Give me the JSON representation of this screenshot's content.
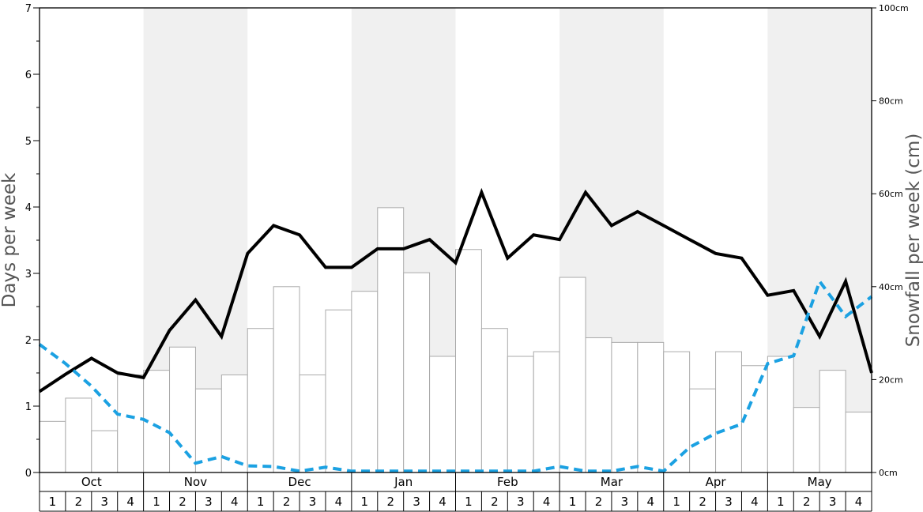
{
  "chart_data": {
    "type": "bar",
    "months": [
      "Oct",
      "Nov",
      "Dec",
      "Jan",
      "Feb",
      "Mar",
      "Apr",
      "May"
    ],
    "week_labels": [
      "1",
      "2",
      "3",
      "4"
    ],
    "ylabel_left": "Days per week",
    "ylabel_right": "Snowfall per week (cm)",
    "left_ylim": [
      0,
      7
    ],
    "left_ticks": [
      "0",
      "1",
      "2",
      "3",
      "4",
      "5",
      "6",
      "7"
    ],
    "right_ylim": [
      0,
      100
    ],
    "right_ticks": [
      "0cm",
      "20cm",
      "40cm",
      "60cm",
      "80cm",
      "100cm"
    ],
    "grid": false,
    "shaded_months": [
      "Nov",
      "Jan",
      "Mar",
      "May"
    ],
    "colors": {
      "bar_fill": "#ffffff",
      "bar_stroke": "#aaaaaa",
      "line_solid": "#000000",
      "line_dashed": "#1ba1e2",
      "shade": "#f0f0f0"
    },
    "series": [
      {
        "type": "bar",
        "axis": "right",
        "values": [
          11,
          16,
          9,
          21,
          22,
          27,
          18,
          21,
          31,
          40,
          21,
          35,
          39,
          57,
          43,
          25,
          48,
          31,
          25,
          26,
          42,
          29,
          28,
          28,
          26,
          18,
          26,
          23,
          25,
          14,
          22,
          13
        ]
      },
      {
        "type": "line",
        "axis": "left",
        "style": "solid",
        "values": [
          1.22,
          1.48,
          1.72,
          1.5,
          1.43,
          2.14,
          2.6,
          2.05,
          3.3,
          3.72,
          3.58,
          3.09,
          3.09,
          3.37,
          3.37,
          3.51,
          3.16,
          4.22,
          3.23,
          3.58,
          3.51,
          4.22,
          3.72,
          3.93,
          3.72,
          3.51,
          3.3,
          3.23,
          2.67,
          2.74,
          2.05,
          2.88,
          1.5
        ]
      },
      {
        "type": "line",
        "axis": "left",
        "style": "dashed",
        "values": [
          1.93,
          1.64,
          1.3,
          0.88,
          0.8,
          0.6,
          0.14,
          0.24,
          0.1,
          0.09,
          0.02,
          0.08,
          0.02,
          0.02,
          0.02,
          0.02,
          0.02,
          0.02,
          0.02,
          0.02,
          0.09,
          0.02,
          0.02,
          0.09,
          0.02,
          0.38,
          0.59,
          0.73,
          1.64,
          1.76,
          2.88,
          2.35,
          2.65
        ]
      }
    ]
  }
}
